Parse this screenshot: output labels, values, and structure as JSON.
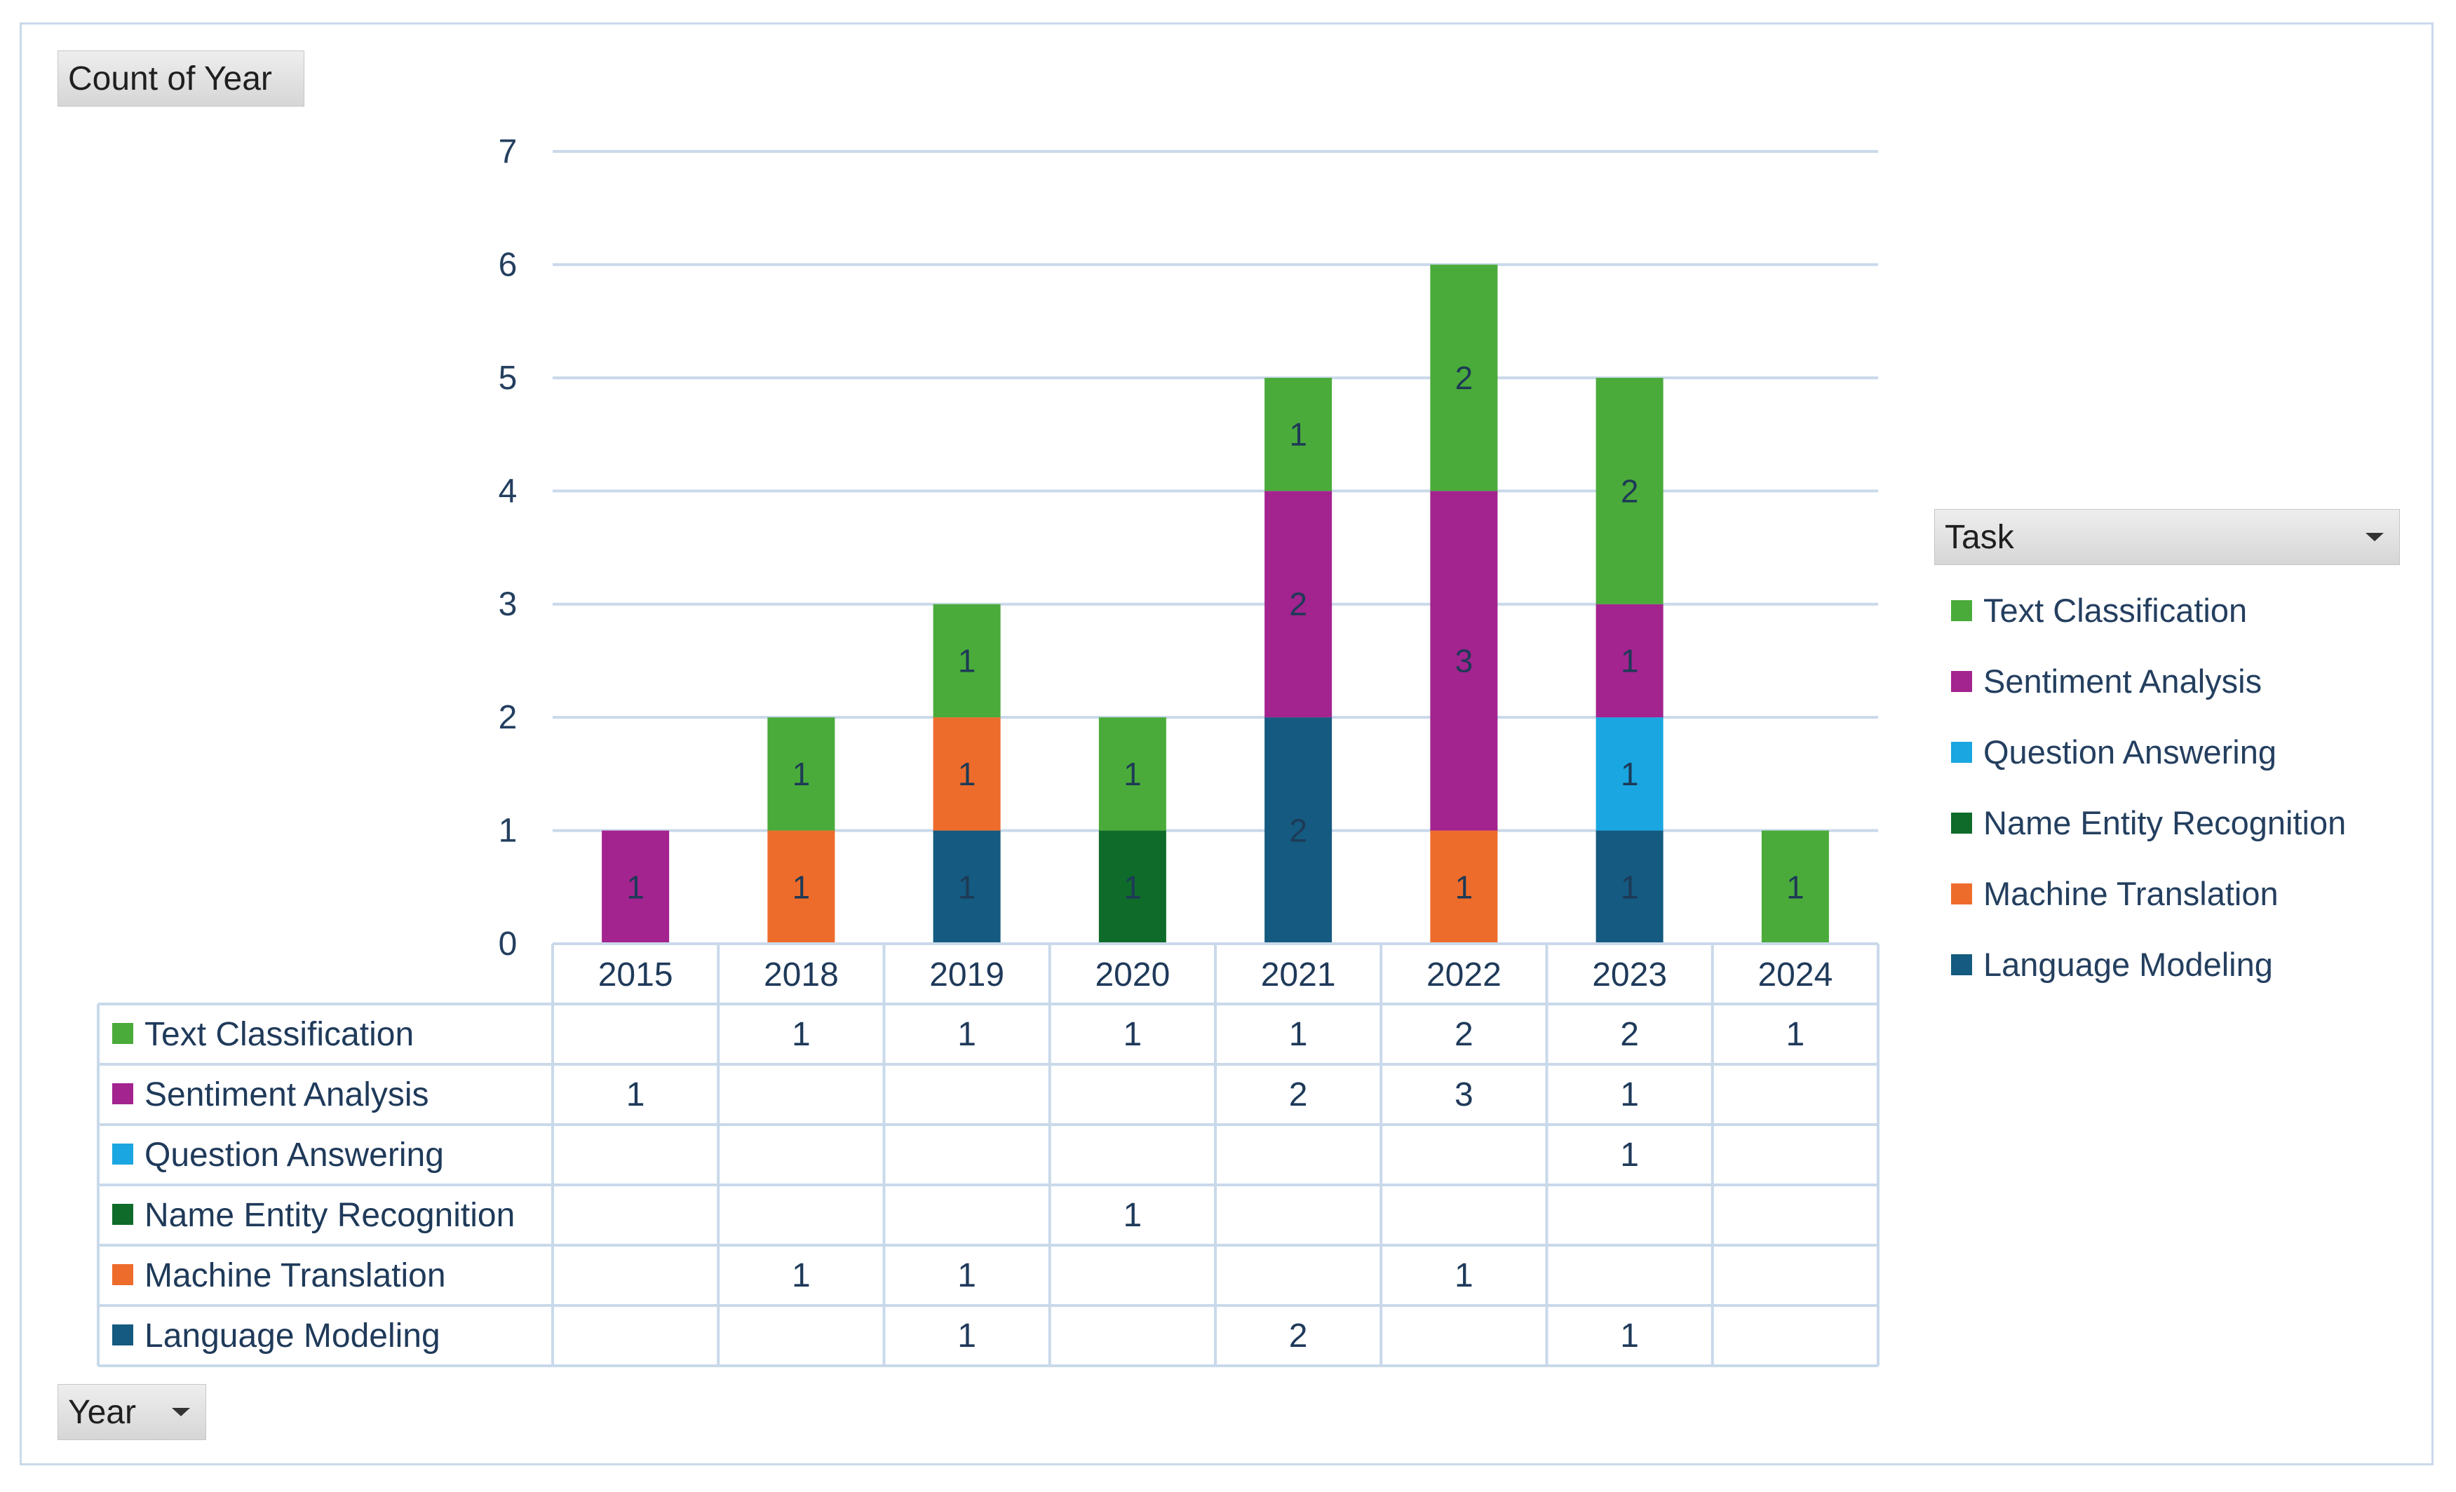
{
  "chart_data": {
    "type": "bar",
    "stacked": true,
    "title": "",
    "xlabel": "",
    "ylabel": "",
    "ylim": [
      0,
      7
    ],
    "y_ticks": [
      "0",
      "1",
      "2",
      "3",
      "4",
      "5",
      "6",
      "7"
    ],
    "categories": [
      "2015",
      "2018",
      "2019",
      "2020",
      "2021",
      "2022",
      "2023",
      "2024"
    ],
    "series": [
      {
        "name": "Language Modeling",
        "color": "#155a80",
        "values": [
          0,
          0,
          1,
          0,
          2,
          0,
          1,
          0
        ]
      },
      {
        "name": "Machine Translation",
        "color": "#ee6c2b",
        "values": [
          0,
          1,
          1,
          0,
          0,
          1,
          0,
          0
        ]
      },
      {
        "name": "Name Entity Recognition",
        "color": "#0f6b2a",
        "values": [
          0,
          0,
          0,
          1,
          0,
          0,
          0,
          0
        ]
      },
      {
        "name": "Question Answering",
        "color": "#1aa6e0",
        "values": [
          0,
          0,
          0,
          0,
          0,
          0,
          1,
          0
        ]
      },
      {
        "name": "Sentiment Analysis",
        "color": "#a3238f",
        "values": [
          1,
          0,
          0,
          0,
          2,
          3,
          1,
          0
        ]
      },
      {
        "name": "Text Classification",
        "color": "#4aab3a",
        "values": [
          0,
          1,
          1,
          1,
          1,
          2,
          2,
          1
        ]
      }
    ],
    "legend_title": "Task",
    "legend_order": [
      "Text Classification",
      "Sentiment Analysis",
      "Question Answering",
      "Name Entity Recognition",
      "Machine Translation",
      "Language Modeling"
    ],
    "legend_position": "right",
    "grid": true,
    "data_table": true
  },
  "field_buttons": {
    "values_field": "Count of Year",
    "axis_field": "Year",
    "legend_field": "Task"
  },
  "icons": {
    "dropdown": "dropdown-arrow-icon"
  }
}
